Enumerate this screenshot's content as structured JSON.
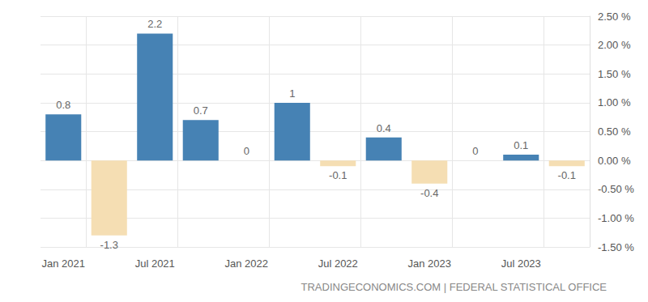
{
  "chart_data": {
    "type": "bar",
    "categories": [
      "Jan 2021",
      null,
      "Jul 2021",
      null,
      "Jan 2022",
      null,
      "Jul 2022",
      null,
      "Jan 2023",
      null,
      "Jul 2023",
      null
    ],
    "values": [
      0.8,
      -1.3,
      2.2,
      0.7,
      0,
      1,
      -0.1,
      0.4,
      -0.4,
      0,
      0.1,
      -0.1
    ],
    "colors": [
      "#4682b4",
      "#f5deb3",
      "#4682b4",
      "#4682b4",
      "#4682b4",
      "#4682b4",
      "#f5deb3",
      "#4682b4",
      "#f5deb3",
      "#4682b4",
      "#4682b4",
      "#f5deb3"
    ],
    "ylim": [
      -1.5,
      2.5
    ],
    "yticks": [
      {
        "value": -1.5,
        "label": "-1.50 %"
      },
      {
        "value": -1,
        "label": "-1.00 %"
      },
      {
        "value": -0.5,
        "label": "-0.50 %"
      },
      {
        "value": 0,
        "label": "0.00 %"
      },
      {
        "value": 0.5,
        "label": "0.50 %"
      },
      {
        "value": 1,
        "label": "1.00 %"
      },
      {
        "value": 1.5,
        "label": "1.50 %"
      },
      {
        "value": 2,
        "label": "2.00 %"
      },
      {
        "value": 2.5,
        "label": "2.50 %"
      }
    ],
    "grid": true,
    "data_labels": true,
    "source": "TRADINGECONOMICS.COM | FEDERAL STATISTICAL OFFICE"
  }
}
